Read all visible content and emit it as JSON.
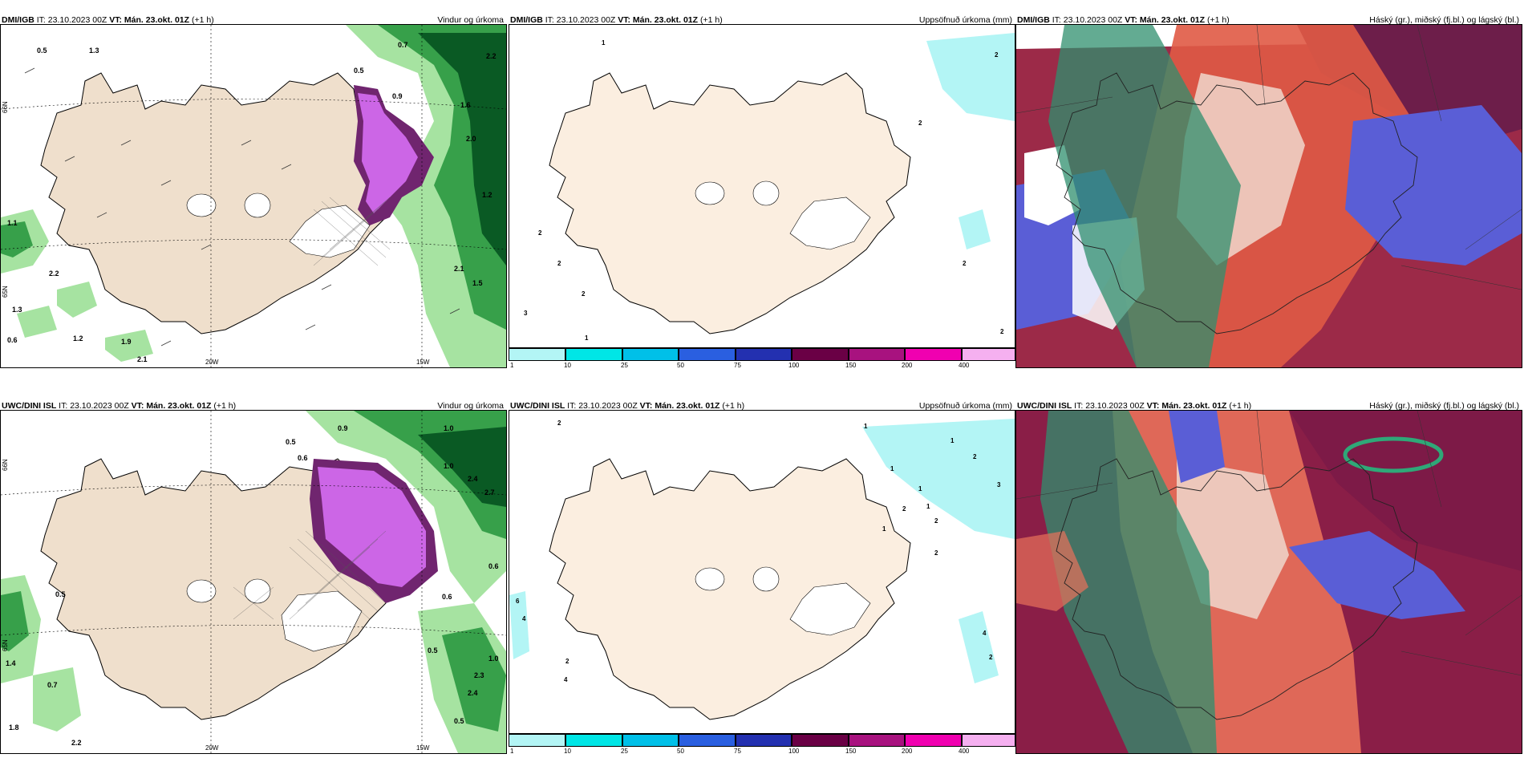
{
  "panels": [
    {
      "model": "DMI/IGB",
      "it_label": "IT:",
      "it": "23.10.2023 00Z",
      "vt_label": "VT: Mán. 23.okt. 01Z",
      "lead": "(+1 h)",
      "title": "Vindur og úrkoma"
    },
    {
      "model": "DMI/IGB",
      "it_label": "IT:",
      "it": "23.10.2023 00Z",
      "vt_label": "VT: Mán. 23.okt. 01Z",
      "lead": "(+1 h)",
      "title": "Uppsöfnuð úrkoma (mm)"
    },
    {
      "model": "DMI/IGB",
      "it_label": "IT:",
      "it": "23.10.2023 00Z",
      "vt_label": "VT: Mán. 23.okt. 01Z",
      "lead": "(+1 h)",
      "title": "Háský (gr.), miðský (fj.bl.) og lágský (bl.)"
    },
    {
      "model": "UWC/DINI ISL",
      "it_label": "IT:",
      "it": "23.10.2023 00Z",
      "vt_label": "VT: Mán. 23.okt. 01Z",
      "lead": "(+1 h)",
      "title": "Vindur og úrkoma"
    },
    {
      "model": "UWC/DINI ISL",
      "it_label": "IT:",
      "it": "23.10.2023 00Z",
      "vt_label": "VT: Mán. 23.okt. 01Z",
      "lead": "(+1 h)",
      "title": "Uppsöfnuð úrkoma (mm)"
    },
    {
      "model": "UWC/DINI ISL",
      "it_label": "IT:",
      "it": "23.10.2023 00Z",
      "vt_label": "VT: Mán. 23.okt. 01Z",
      "lead": "(+1 h)",
      "title": "Háský (gr.), miðský (fj.bl.) og lágský (bl.)"
    }
  ],
  "axis_labels": {
    "lon_20w": "20W",
    "lon_15w": "15W",
    "lat_66n": "66N",
    "lat_65n": "65N"
  },
  "colorbar": {
    "ticks": [
      "1",
      "10",
      "25",
      "50",
      "75",
      "100",
      "150",
      "200",
      "400"
    ],
    "colors": [
      "#b3f5f5",
      "#00e6e6",
      "#00c0e8",
      "#2a5fe0",
      "#2330b0",
      "#6a0045",
      "#a8127f",
      "#f000b0",
      "#f5b0f0"
    ]
  },
  "wind_precip_top_values": [
    "0.5",
    "0.7",
    "2.2",
    "1.6",
    "2.0",
    "1.2",
    "2.1",
    "1.5",
    "1.1",
    "2.2",
    "1.3",
    "0.6",
    "1.2",
    "1.9",
    "2.1",
    "0.5",
    "1.3",
    "0.9"
  ],
  "wind_precip_bottom_values": [
    "1.0",
    "0.5",
    "0.6",
    "0.9",
    "2.4",
    "2.7",
    "1.0",
    "0.6",
    "0.6",
    "0.5",
    "0.7",
    "0.5",
    "2.4",
    "2.3",
    "1.0",
    "1.4",
    "2.2",
    "0.5",
    "1.8"
  ],
  "accum_top_values": [
    "1",
    "2",
    "2",
    "2",
    "2",
    "2",
    "2",
    "2",
    "3",
    "1"
  ],
  "accum_bottom_values": [
    "2",
    "1",
    "1",
    "2",
    "1",
    "1",
    "1",
    "3",
    "2",
    "1",
    "2",
    "4",
    "2",
    "2",
    "6",
    "4",
    "2",
    "4"
  ],
  "colors": {
    "land": "#efdfcc",
    "land_accum": "#fbeee0",
    "precip_green_light": "#a6e3a1",
    "precip_green_mid": "#37a04a",
    "precip_green_dark": "#0a5a24",
    "snow_purple": "#cc66e6",
    "snow_dark": "#70256f"
  }
}
